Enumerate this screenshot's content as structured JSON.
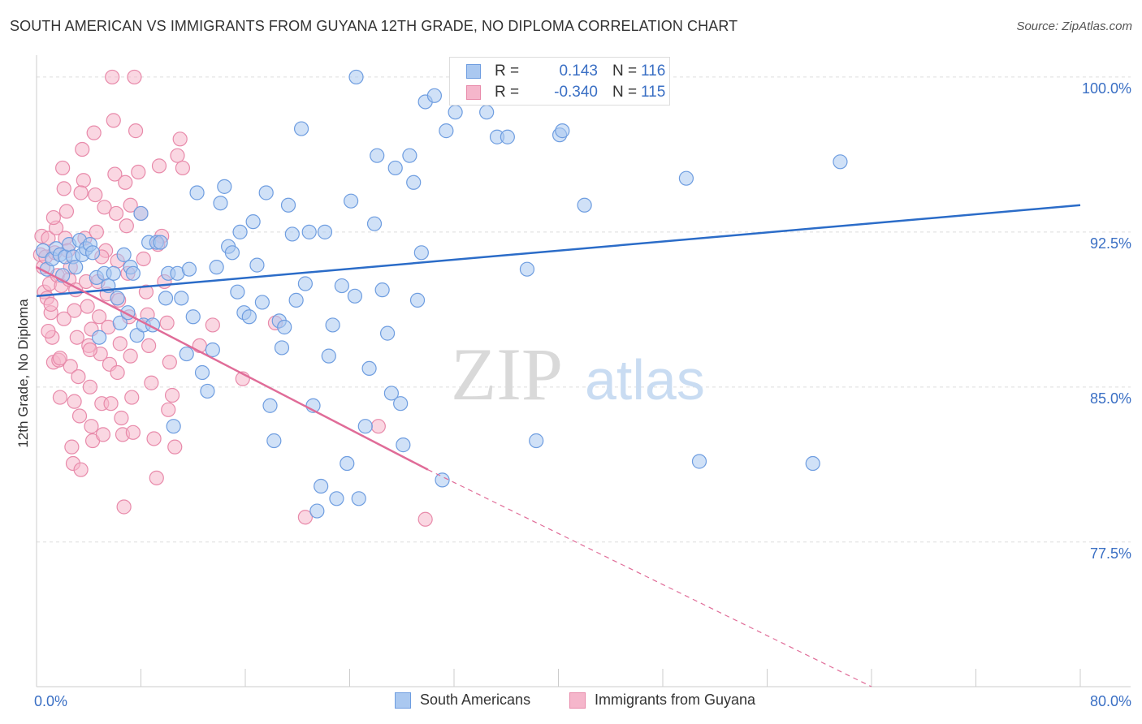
{
  "header": {
    "title": "SOUTH AMERICAN VS IMMIGRANTS FROM GUYANA 12TH GRADE, NO DIPLOMA CORRELATION CHART",
    "source": "Source: ZipAtlas.com"
  },
  "legend": {
    "rows": [
      {
        "r_label": "R =",
        "r_value": "0.143",
        "n_label": "N =",
        "n_value": "116"
      },
      {
        "r_label": "R =",
        "r_value": "-0.340",
        "n_label": "N =",
        "n_value": "115"
      }
    ]
  },
  "bottom_legend": {
    "items": [
      "South Americans",
      "Immigrants from Guyana"
    ]
  },
  "watermark": {
    "zip": "ZIP",
    "atlas": "atlas"
  },
  "colors": {
    "blue_fill": "#aac8f0",
    "blue_stroke": "#6e9de0",
    "blue_line": "#2b6cc8",
    "pink_fill": "#f5b6cb",
    "pink_stroke": "#e88aaa",
    "pink_line": "#e06c98",
    "tick_label": "#3a6fc4",
    "grid": "#dddddd"
  },
  "chart_data": {
    "type": "scatter",
    "title": "SOUTH AMERICAN VS IMMIGRANTS FROM GUYANA 12TH GRADE, NO DIPLOMA CORRELATION CHART",
    "xlabel": "",
    "ylabel": "12th Grade, No Diploma",
    "xlim": [
      0,
      80
    ],
    "ylim": [
      70.5,
      100.9
    ],
    "x_tick_labels": [
      {
        "value": 0,
        "label": "0.0%"
      },
      {
        "value": 80,
        "label": "80.0%"
      }
    ],
    "y_tick_labels": [
      {
        "value": 100.0,
        "label": "100.0%"
      },
      {
        "value": 92.5,
        "label": "92.5%"
      },
      {
        "value": 85.0,
        "label": "85.0%"
      },
      {
        "value": 77.5,
        "label": "77.5%"
      }
    ],
    "grid": "horizontal dashed",
    "legend_position": "top-center",
    "series": [
      {
        "name": "South Americans",
        "color": "#aac8f0",
        "trend": {
          "x": [
            0,
            80
          ],
          "y": [
            89.4,
            93.8
          ],
          "style": "solid"
        },
        "points": [
          [
            0.5,
            91.6
          ],
          [
            0.8,
            90.7
          ],
          [
            1.2,
            91.2
          ],
          [
            1.5,
            91.7
          ],
          [
            1.8,
            91.4
          ],
          [
            2,
            90.4
          ],
          [
            2.2,
            91.3
          ],
          [
            2.5,
            91.9
          ],
          [
            2.8,
            91.3
          ],
          [
            3,
            90.8
          ],
          [
            3.3,
            92.1
          ],
          [
            3.5,
            91.4
          ],
          [
            3.8,
            91.7
          ],
          [
            4.1,
            91.9
          ],
          [
            4.3,
            91.5
          ],
          [
            4.6,
            90.3
          ],
          [
            4.8,
            87.4
          ],
          [
            5.2,
            90.5
          ],
          [
            5.5,
            89.9
          ],
          [
            5.9,
            90.5
          ],
          [
            6.2,
            89.3
          ],
          [
            6.4,
            88.1
          ],
          [
            6.7,
            91.4
          ],
          [
            7,
            88.6
          ],
          [
            7.2,
            90.8
          ],
          [
            7.4,
            90.5
          ],
          [
            7.7,
            87.5
          ],
          [
            8,
            93.4
          ],
          [
            8.2,
            88
          ],
          [
            8.6,
            92
          ],
          [
            8.9,
            88
          ],
          [
            9.2,
            92
          ],
          [
            9.5,
            92
          ],
          [
            9.9,
            89.3
          ],
          [
            10.1,
            90.5
          ],
          [
            10.5,
            83.1
          ],
          [
            10.8,
            90.5
          ],
          [
            11.1,
            89.3
          ],
          [
            11.5,
            86.6
          ],
          [
            11.7,
            90.7
          ],
          [
            12,
            88.4
          ],
          [
            12.3,
            94.4
          ],
          [
            12.7,
            85.7
          ],
          [
            13.1,
            84.8
          ],
          [
            13.5,
            86.8
          ],
          [
            13.8,
            90.8
          ],
          [
            14.1,
            93.9
          ],
          [
            14.4,
            94.7
          ],
          [
            14.7,
            91.8
          ],
          [
            15,
            91.5
          ],
          [
            15.4,
            89.6
          ],
          [
            15.6,
            92.5
          ],
          [
            15.9,
            88.6
          ],
          [
            16.3,
            88.4
          ],
          [
            16.6,
            93
          ],
          [
            16.9,
            90.9
          ],
          [
            17.3,
            89.1
          ],
          [
            17.6,
            94.4
          ],
          [
            17.9,
            84.1
          ],
          [
            18.2,
            82.4
          ],
          [
            18.6,
            88.2
          ],
          [
            18.8,
            86.9
          ],
          [
            19,
            87.9
          ],
          [
            19.3,
            93.8
          ],
          [
            19.6,
            92.4
          ],
          [
            19.9,
            89.2
          ],
          [
            20.3,
            97.5
          ],
          [
            20.6,
            90
          ],
          [
            20.9,
            92.5
          ],
          [
            21.2,
            84.1
          ],
          [
            21.5,
            79
          ],
          [
            21.8,
            80.2
          ],
          [
            22.1,
            92.5
          ],
          [
            22.4,
            86.5
          ],
          [
            22.7,
            88
          ],
          [
            23,
            79.6
          ],
          [
            23.4,
            89.9
          ],
          [
            23.8,
            81.3
          ],
          [
            24.1,
            94
          ],
          [
            24.4,
            89.4
          ],
          [
            24.7,
            79.6
          ],
          [
            25.2,
            83.1
          ],
          [
            25.5,
            85.9
          ],
          [
            25.9,
            92.9
          ],
          [
            26.1,
            96.2
          ],
          [
            26.5,
            89.7
          ],
          [
            26.9,
            87.6
          ],
          [
            27.2,
            84.7
          ],
          [
            27.5,
            95.6
          ],
          [
            27.9,
            84.2
          ],
          [
            28.1,
            82.2
          ],
          [
            28.6,
            96.2
          ],
          [
            28.9,
            94.9
          ],
          [
            29.2,
            89.2
          ],
          [
            29.5,
            91.5
          ],
          [
            29.8,
            98.8
          ],
          [
            30.5,
            99.1
          ],
          [
            31.1,
            80.5
          ],
          [
            31.4,
            97.4
          ],
          [
            32.1,
            98.3
          ],
          [
            33,
            100
          ],
          [
            34.5,
            98.3
          ],
          [
            35.3,
            97.1
          ],
          [
            36.1,
            97.1
          ],
          [
            36.9,
            100
          ],
          [
            37.6,
            90.7
          ],
          [
            38.3,
            82.4
          ],
          [
            40.1,
            97.2
          ],
          [
            40.3,
            97.4
          ],
          [
            41.1,
            100
          ],
          [
            42,
            93.8
          ],
          [
            49.8,
            95.1
          ],
          [
            50.8,
            81.4
          ],
          [
            59.5,
            81.3
          ],
          [
            61.6,
            95.9
          ],
          [
            24.5,
            100
          ]
        ]
      },
      {
        "name": "Immigrants from Guyana",
        "color": "#f5b6cb",
        "trend": {
          "x": [
            0,
            30
          ],
          "y": [
            90.8,
            81.0
          ],
          "style": "solid",
          "extended": {
            "x": [
              30,
              64
            ],
            "y": [
              81.0,
              70.5
            ],
            "style": "dashed"
          }
        },
        "points": [
          [
            0.3,
            91.4
          ],
          [
            0.4,
            92.3
          ],
          [
            0.5,
            90.8
          ],
          [
            0.6,
            89.6
          ],
          [
            0.7,
            91.3
          ],
          [
            0.8,
            89.3
          ],
          [
            0.9,
            92.2
          ],
          [
            1,
            90
          ],
          [
            1.1,
            88.6
          ],
          [
            1.2,
            87.4
          ],
          [
            1.3,
            86.2
          ],
          [
            1.4,
            91.5
          ],
          [
            1.5,
            92.7
          ],
          [
            1.6,
            90.4
          ],
          [
            1.7,
            86.3
          ],
          [
            1.8,
            84.5
          ],
          [
            1.9,
            89.9
          ],
          [
            2,
            95.6
          ],
          [
            2.1,
            94.6
          ],
          [
            2.2,
            92.2
          ],
          [
            2.3,
            93.5
          ],
          [
            2.4,
            91.6
          ],
          [
            2.5,
            90.2
          ],
          [
            2.6,
            86
          ],
          [
            2.7,
            82.1
          ],
          [
            2.8,
            81.3
          ],
          [
            2.9,
            88.7
          ],
          [
            3,
            89.7
          ],
          [
            3.1,
            87.4
          ],
          [
            3.2,
            85.5
          ],
          [
            3.3,
            83.6
          ],
          [
            3.4,
            81
          ],
          [
            3.5,
            96.5
          ],
          [
            3.6,
            95
          ],
          [
            3.7,
            92.2
          ],
          [
            3.8,
            90.1
          ],
          [
            3.9,
            88.9
          ],
          [
            4,
            87
          ],
          [
            4.1,
            85
          ],
          [
            4.2,
            83.1
          ],
          [
            4.3,
            82.4
          ],
          [
            4.4,
            97.3
          ],
          [
            4.5,
            94.3
          ],
          [
            4.6,
            92.5
          ],
          [
            4.7,
            90.1
          ],
          [
            4.8,
            88.4
          ],
          [
            4.9,
            86.6
          ],
          [
            5,
            84.2
          ],
          [
            5.1,
            82.7
          ],
          [
            5.2,
            93.7
          ],
          [
            5.3,
            91.6
          ],
          [
            5.4,
            89.5
          ],
          [
            5.5,
            87.9
          ],
          [
            5.6,
            86.1
          ],
          [
            5.7,
            84.2
          ],
          [
            5.8,
            100
          ],
          [
            5.9,
            97.9
          ],
          [
            6,
            95.3
          ],
          [
            6.1,
            93.4
          ],
          [
            6.2,
            91.1
          ],
          [
            6.3,
            89.2
          ],
          [
            6.4,
            87.1
          ],
          [
            6.5,
            83.5
          ],
          [
            6.6,
            82.7
          ],
          [
            6.7,
            79.2
          ],
          [
            6.8,
            94.9
          ],
          [
            6.9,
            92.8
          ],
          [
            7,
            90.5
          ],
          [
            7.1,
            88.4
          ],
          [
            7.2,
            86.5
          ],
          [
            7.3,
            84.5
          ],
          [
            7.4,
            82.8
          ],
          [
            7.5,
            100
          ],
          [
            7.6,
            97.4
          ],
          [
            7.8,
            95.4
          ],
          [
            8,
            93.4
          ],
          [
            8.2,
            91.2
          ],
          [
            8.4,
            89.6
          ],
          [
            8.6,
            87
          ],
          [
            8.8,
            85.2
          ],
          [
            9,
            82.5
          ],
          [
            9.2,
            80.6
          ],
          [
            9.4,
            95.7
          ],
          [
            9.6,
            92.3
          ],
          [
            9.8,
            90.1
          ],
          [
            10,
            88.1
          ],
          [
            10.2,
            86.2
          ],
          [
            10.4,
            84.6
          ],
          [
            10.6,
            82.1
          ],
          [
            10.8,
            96.2
          ],
          [
            11,
            97
          ],
          [
            11.2,
            95.6
          ],
          [
            12.5,
            87
          ],
          [
            13.5,
            88
          ],
          [
            15.8,
            85.4
          ],
          [
            18.3,
            88.1
          ],
          [
            20.6,
            78.7
          ],
          [
            26.2,
            83.1
          ],
          [
            29.8,
            78.6
          ],
          [
            1.1,
            89
          ],
          [
            1.3,
            93.2
          ],
          [
            2.1,
            88.3
          ],
          [
            2.6,
            90.8
          ],
          [
            3.4,
            94.4
          ],
          [
            4.2,
            87.8
          ],
          [
            5,
            91.3
          ],
          [
            6.2,
            85.7
          ],
          [
            7.2,
            93.8
          ],
          [
            8.5,
            88.5
          ],
          [
            9.3,
            91.9
          ],
          [
            10.1,
            83.9
          ],
          [
            4.1,
            86.8
          ],
          [
            1.8,
            86.4
          ],
          [
            2.9,
            84.3
          ],
          [
            0.9,
            87.7
          ]
        ]
      }
    ]
  }
}
